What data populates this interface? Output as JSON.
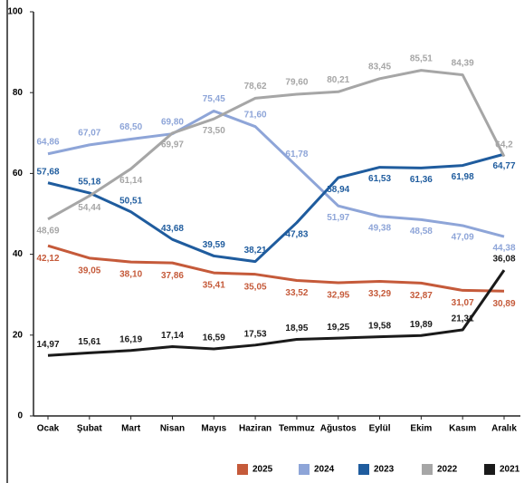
{
  "chart_data": {
    "type": "line",
    "categories": [
      "Ocak",
      "Şubat",
      "Mart",
      "Nisan",
      "Mayıs",
      "Haziran",
      "Temmuz",
      "Ağustos",
      "Eylül",
      "Ekim",
      "Kasım",
      "Aralık"
    ],
    "ylim": [
      0,
      100
    ],
    "yticks": [
      0,
      20,
      40,
      60,
      80,
      100
    ],
    "legend": "bottom-right",
    "series": [
      {
        "name": "2025",
        "color": "#c55a3a",
        "values": [
          42.12,
          39.05,
          38.1,
          37.86,
          35.41,
          35.05,
          33.52,
          32.95,
          33.29,
          32.87,
          31.07,
          30.89
        ],
        "value_labels": [
          "42,12",
          "39,05",
          "38,10",
          "37,86",
          "35,41",
          "35,05",
          "33,52",
          "32,95",
          "33,29",
          "32,87",
          "31,07",
          "30,89"
        ]
      },
      {
        "name": "2024",
        "color": "#8ea5d8",
        "values": [
          64.86,
          67.07,
          68.5,
          69.8,
          75.45,
          71.6,
          61.78,
          51.97,
          49.38,
          48.58,
          47.09,
          44.38
        ],
        "value_labels": [
          "64,86",
          "67,07",
          "68,50",
          "69,80",
          "75,45",
          "71,60",
          "61,78",
          "51,97",
          "49,38",
          "48,58",
          "47,09",
          "44,38"
        ]
      },
      {
        "name": "2023",
        "color": "#1f5c9e",
        "values": [
          57.68,
          55.18,
          50.51,
          43.68,
          39.59,
          38.21,
          47.83,
          58.94,
          61.53,
          61.36,
          61.98,
          64.77
        ],
        "value_labels": [
          "57,68",
          "55,18",
          "50,51",
          "43,68",
          "39,59",
          "38,21",
          "47,83",
          "58,94",
          "61,53",
          "61,36",
          "61,98",
          "64,77"
        ]
      },
      {
        "name": "2022",
        "color": "#a6a6a6",
        "values": [
          48.69,
          54.44,
          61.14,
          69.97,
          73.5,
          78.62,
          79.6,
          80.21,
          83.45,
          85.51,
          84.39,
          64.2
        ],
        "value_labels": [
          "48,69",
          "54,44",
          "61,14",
          "69,97",
          "73,50",
          "78,62",
          "79,60",
          "80,21",
          "83,45",
          "85,51",
          "84,39",
          "64,2"
        ]
      },
      {
        "name": "2021",
        "color": "#1a1a1a",
        "values": [
          14.97,
          15.61,
          16.19,
          17.14,
          16.59,
          17.53,
          18.95,
          19.25,
          19.58,
          19.89,
          21.31,
          36.08
        ],
        "value_labels": [
          "14,97",
          "15,61",
          "16,19",
          "17,14",
          "16,59",
          "17,53",
          "18,95",
          "19,25",
          "19,58",
          "19,89",
          "21,31",
          "36,08"
        ]
      }
    ]
  }
}
